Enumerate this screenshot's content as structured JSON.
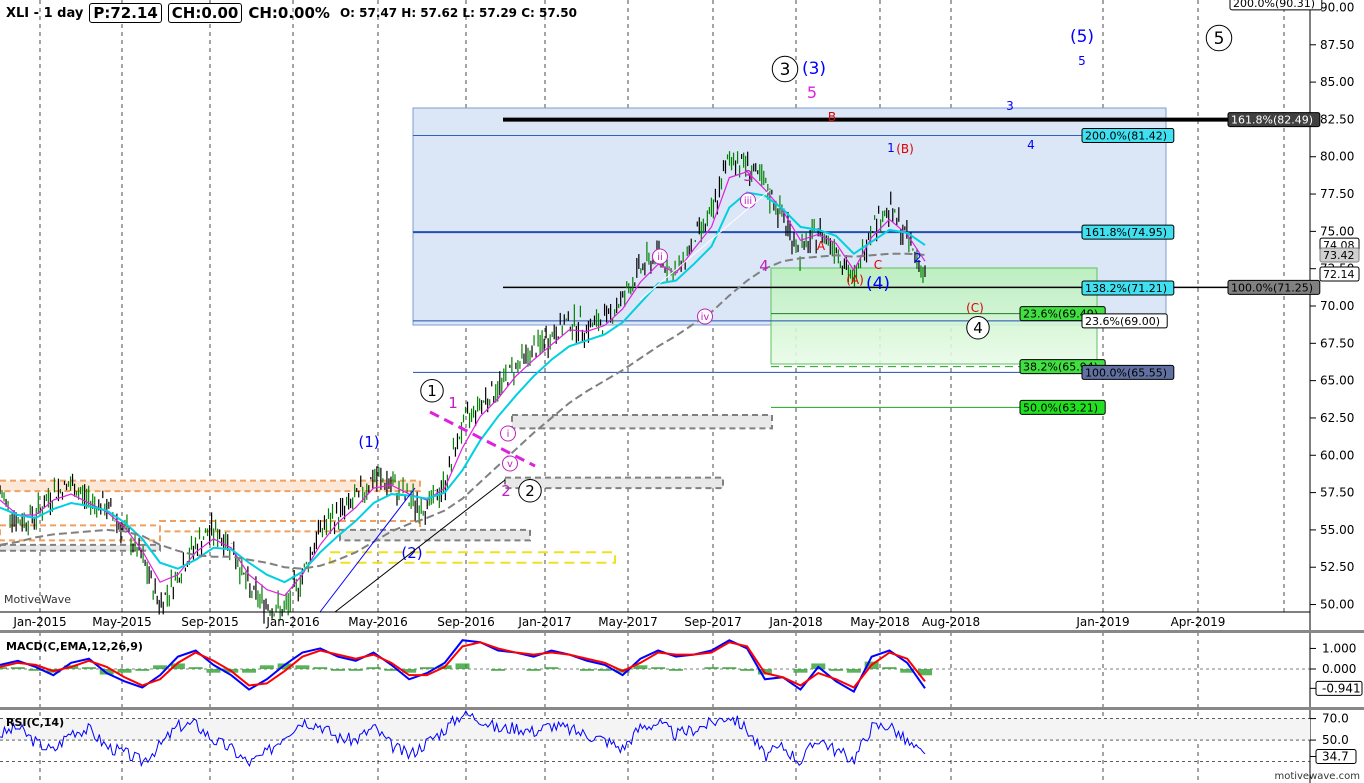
{
  "header": {
    "symbol": "XLI - 1 day",
    "price": "P:72.14",
    "change": "CH:0.00",
    "change_pct": "CH:0.00%",
    "ohlc": "O: 57.47  H: 57.62  L: 57.29  C: 57.50"
  },
  "watermark_left": "MotiveWave",
  "watermark_right": "motivewave.com",
  "chart_data": [
    {
      "type": "line",
      "panel": "price",
      "x_tick_labels": [
        "Jan-2015",
        "May-2015",
        "Sep-2015",
        "Jan-2016",
        "May-2016",
        "Sep-2016",
        "Jan-2017",
        "May-2017",
        "Sep-2017",
        "Jan-2018",
        "May-2018",
        "Aug-2018",
        "Jan-2019",
        "Apr-2019"
      ],
      "y_tick_labels": [
        "90.00",
        "87.50",
        "85.00",
        "82.50",
        "80.00",
        "77.50",
        "75.00",
        "72.50",
        "70.00",
        "67.50",
        "65.00",
        "62.50",
        "60.00",
        "57.50",
        "55.00",
        "52.50",
        "50.00"
      ],
      "ylim": [
        49.5,
        90.5
      ],
      "series": [
        {
          "color": "#000000",
          "values": [
            57.5,
            55.5,
            56,
            57.5,
            58,
            57,
            56.5,
            55,
            53,
            50,
            52,
            54,
            55,
            54,
            51,
            50,
            49.5,
            52,
            55,
            56,
            57,
            58.5,
            58,
            57,
            56.5,
            58,
            62,
            63.5,
            64.5,
            66,
            67,
            68,
            69,
            68.5,
            69,
            70.5,
            72.5,
            73.5,
            72,
            74.5,
            76,
            80,
            79.5,
            78,
            76,
            73.5,
            75,
            74,
            71.5,
            75.5,
            76.5,
            74.5,
            72.14
          ]
        },
        {
          "color": "#e020e0",
          "values": [
            57,
            56,
            56,
            57,
            57.4,
            56.8,
            56.2,
            55.2,
            53.6,
            51.5,
            52,
            53.5,
            54.4,
            53.8,
            52,
            51,
            50.6,
            52,
            54,
            55.5,
            56.5,
            57.8,
            58,
            57.4,
            57,
            57.8,
            60.5,
            62.6,
            63.8,
            65.3,
            66.4,
            67.4,
            68.4,
            68.3,
            68.7,
            69.8,
            71.6,
            72.8,
            72.2,
            73.8,
            75.3,
            78.6,
            79,
            77.8,
            76.4,
            74.4,
            74.8,
            74.2,
            72.4,
            74.6,
            75.8,
            74.8,
            73
          ]
        },
        {
          "color": "#00d0e0",
          "values": [
            56.5,
            56,
            55.8,
            56.4,
            56.8,
            56.6,
            56.3,
            55.5,
            54.4,
            52.8,
            52.4,
            53,
            53.8,
            53.7,
            52.8,
            52,
            51.5,
            52.2,
            53.5,
            54.6,
            55.6,
            56.8,
            57.4,
            57.3,
            57.1,
            57.5,
            59,
            61,
            62.6,
            64,
            65.3,
            66.4,
            67.3,
            67.7,
            68.1,
            68.9,
            70.2,
            71.5,
            71.7,
            72.8,
            74,
            76.6,
            77.6,
            77.4,
            76.5,
            75.3,
            75.1,
            74.7,
            73.5,
            74.3,
            75.1,
            74.9,
            74.08
          ]
        },
        {
          "color": "#808080",
          "values": [
            54,
            54.2,
            54.5,
            54.7,
            54.8,
            54.9,
            55,
            54.9,
            54.6,
            54,
            53.6,
            53.3,
            53.2,
            53.2,
            53,
            52.8,
            52.5,
            52.4,
            52.6,
            53,
            53.5,
            54.2,
            54.9,
            55.4,
            55.8,
            56.3,
            57.1,
            58.2,
            59.3,
            60.4,
            61.5,
            62.5,
            63.5,
            64.3,
            65,
            65.7,
            66.5,
            67.3,
            68,
            68.8,
            69.6,
            70.7,
            71.7,
            72.5,
            73,
            73.2,
            73.3,
            73.4,
            73.3,
            73.4,
            73.5,
            73.5,
            73.42
          ]
        }
      ],
      "price_labels": [
        "200.0%(90.31)",
        "161.8%(82.49)",
        "200.0%(81.42)",
        "161.8%(74.95)",
        "74.08",
        "73.42",
        "72.14",
        "138.2%(71.21)",
        "100.0%(71.25)",
        "23.6%(69.49)",
        "23.6%(69.00)",
        "38.2%(65.94)",
        "100.0%(65.55)",
        "50.0%(63.21)"
      ],
      "wave_labels": [
        "(5)",
        "5",
        "5",
        "3",
        "(3)",
        "5",
        "B",
        "1",
        "(B)",
        "3",
        "4",
        "3",
        "A",
        "4",
        "(A)",
        "(4)",
        "C",
        "2",
        "(C)",
        "4",
        "1",
        "1",
        "(1)",
        "2",
        "2",
        "(2)",
        "i",
        "ii",
        "iii",
        "iv",
        "v"
      ]
    },
    {
      "type": "line",
      "panel": "macd",
      "title": "MACD(C,EMA,12,26,9)",
      "y_tick_labels": [
        "1.000",
        "0.000",
        "-0.941"
      ],
      "ylim": [
        -1.8,
        1.8
      ],
      "series": [
        {
          "color": "#0000ff",
          "values": [
            0.2,
            0.4,
            0.1,
            -0.3,
            0.3,
            0.5,
            -0.2,
            -0.6,
            -0.9,
            -0.3,
            0.6,
            0.9,
            0.2,
            -0.3,
            -1.0,
            -0.5,
            0.2,
            0.8,
            1.0,
            0.6,
            0.4,
            0.8,
            0.2,
            -0.5,
            -0.2,
            0.3,
            1.4,
            1.3,
            0.9,
            0.8,
            0.6,
            0.9,
            0.7,
            0.4,
            0.2,
            -0.3,
            0.5,
            0.9,
            0.6,
            0.7,
            0.9,
            1.4,
            1.0,
            -0.5,
            -0.4,
            -1.0,
            0.1,
            -0.6,
            -1.1,
            0.6,
            0.9,
            0.3,
            -0.941
          ]
        },
        {
          "color": "#ff0000",
          "values": [
            0.1,
            0.3,
            0.2,
            -0.1,
            0.1,
            0.4,
            0.1,
            -0.4,
            -0.8,
            -0.5,
            0.3,
            0.8,
            0.4,
            -0.1,
            -0.8,
            -0.7,
            -0.1,
            0.6,
            0.9,
            0.7,
            0.5,
            0.7,
            0.3,
            -0.3,
            -0.3,
            0.1,
            1.1,
            1.3,
            1.0,
            0.8,
            0.7,
            0.8,
            0.7,
            0.5,
            0.3,
            -0.1,
            0.3,
            0.8,
            0.7,
            0.7,
            0.8,
            1.3,
            1.1,
            -0.2,
            -0.4,
            -0.8,
            -0.2,
            -0.5,
            -0.9,
            0.2,
            0.8,
            0.5,
            -0.6
          ]
        }
      ]
    },
    {
      "type": "line",
      "panel": "rsi",
      "title": "RSI(C,14)",
      "y_tick_labels": [
        "70.0",
        "50.0",
        "34.7"
      ],
      "ylim": [
        24,
        78
      ],
      "series": [
        {
          "color": "#0000ff",
          "values": [
            55,
            62,
            48,
            40,
            58,
            60,
            44,
            38,
            30,
            45,
            63,
            65,
            50,
            42,
            28,
            38,
            55,
            68,
            64,
            52,
            50,
            62,
            45,
            36,
            48,
            60,
            75,
            70,
            60,
            62,
            58,
            64,
            60,
            55,
            50,
            42,
            62,
            66,
            55,
            60,
            66,
            73,
            60,
            35,
            44,
            30,
            52,
            40,
            32,
            62,
            64,
            48,
            34.7
          ]
        }
      ]
    }
  ]
}
